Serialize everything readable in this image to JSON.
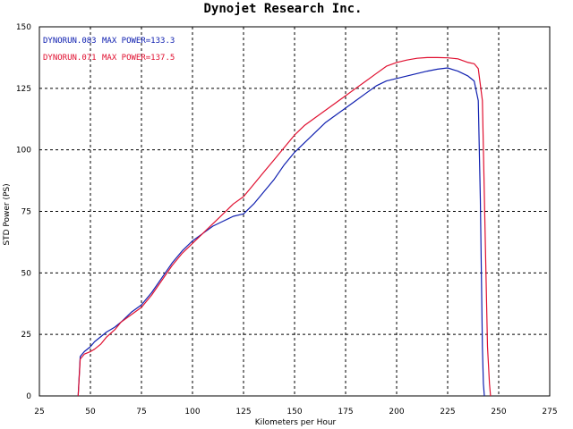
{
  "chart_data": {
    "type": "line",
    "title": "Dynojet  Research  Inc.",
    "xlabel": "Kilometers per Hour",
    "ylabel": "STD Power (PS)",
    "xlim": [
      25,
      275
    ],
    "ylim": [
      0,
      150
    ],
    "xticks": [
      "25",
      "50",
      "75",
      "100",
      "125",
      "150",
      "175",
      "200",
      "225",
      "250",
      "275"
    ],
    "yticks": [
      "0",
      "25",
      "50",
      "75",
      "100",
      "125",
      "150"
    ],
    "grid": true,
    "legend_position": "top-left",
    "colors": {
      "series1": "#1020b0",
      "series2": "#e01030",
      "grid": "#000000",
      "axis": "#000000"
    },
    "series": [
      {
        "name": "DYNORUN.083",
        "label": "MAX POWER=133.3",
        "color": "#1020b0",
        "x": [
          44,
          45,
          47,
          50,
          52,
          55,
          58,
          62,
          65,
          70,
          75,
          80,
          85,
          90,
          95,
          100,
          105,
          110,
          115,
          120,
          125,
          130,
          135,
          140,
          145,
          150,
          155,
          160,
          165,
          170,
          175,
          180,
          185,
          190,
          195,
          200,
          205,
          210,
          215,
          220,
          225,
          230,
          235,
          238,
          240,
          241,
          242,
          242.5,
          243
        ],
        "y": [
          0,
          16,
          18,
          20,
          22,
          24,
          26,
          28,
          30,
          34,
          37,
          42,
          48,
          54,
          59,
          63,
          66,
          69,
          71,
          73,
          74,
          78,
          83,
          88,
          94,
          99,
          103,
          107,
          111,
          114,
          117,
          120,
          123,
          126,
          128,
          129,
          130,
          131,
          132,
          132.8,
          133.3,
          132,
          130,
          128,
          120,
          80,
          20,
          5,
          0
        ]
      },
      {
        "name": "DYNORUN.071",
        "label": "MAX POWER=137.5",
        "color": "#e01030",
        "x": [
          44,
          45,
          47,
          50,
          52,
          55,
          58,
          62,
          65,
          70,
          75,
          80,
          85,
          90,
          95,
          100,
          105,
          110,
          115,
          120,
          125,
          130,
          135,
          140,
          145,
          150,
          155,
          160,
          165,
          170,
          175,
          180,
          185,
          190,
          195,
          200,
          205,
          210,
          215,
          220,
          225,
          230,
          235,
          238,
          240,
          242,
          243.5,
          244.5,
          245.5,
          246
        ],
        "y": [
          0,
          15,
          17,
          18,
          19,
          21,
          24,
          27,
          30,
          33,
          36,
          41,
          47,
          53,
          58,
          62,
          66,
          70,
          74,
          78,
          81,
          86,
          91,
          96,
          101,
          106,
          110,
          113,
          116,
          119,
          122,
          125,
          128,
          131,
          134,
          135.5,
          136.5,
          137.2,
          137.5,
          137.5,
          137.4,
          137,
          135.5,
          135,
          133,
          120,
          60,
          20,
          5,
          0
        ]
      }
    ]
  }
}
